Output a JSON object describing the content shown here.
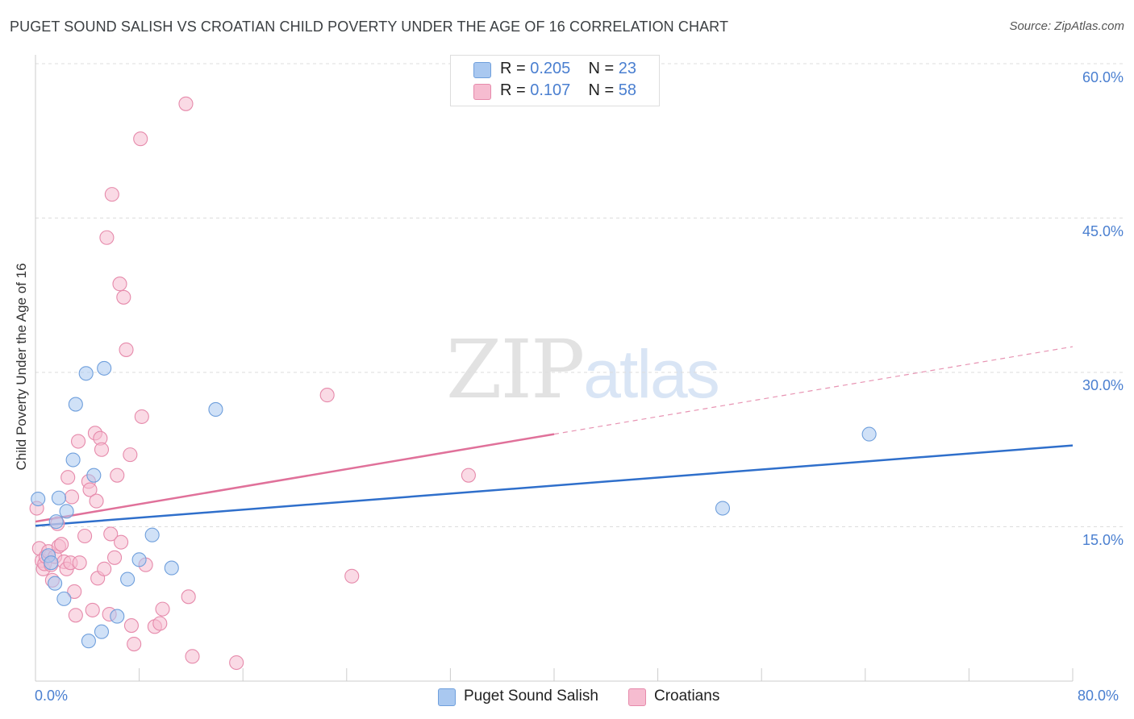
{
  "header": {
    "title": "PUGET SOUND SALISH VS CROATIAN CHILD POVERTY UNDER THE AGE OF 16 CORRELATION CHART",
    "source": "Source: ZipAtlas.com"
  },
  "watermark": {
    "zip": "ZIP",
    "atlas": "atlas"
  },
  "legend": {
    "rows": [
      {
        "r_label": "R =",
        "r_value": "0.205",
        "n_label": "N =",
        "n_value": "23"
      },
      {
        "r_label": "R =",
        "r_value": "0.107",
        "n_label": "N =",
        "n_value": "58"
      }
    ]
  },
  "colors": {
    "salish_fill": "#a9c8f0",
    "salish_stroke": "#6f9fdc",
    "salish_line": "#2f6fcb",
    "croatian_fill": "#f6bcd0",
    "croatian_stroke": "#e68aab",
    "croatian_line": "#e0719a",
    "axis_text": "#4a7fd0",
    "grid": "#dddddd"
  },
  "chart_data": {
    "type": "scatter",
    "title": "PUGET SOUND SALISH VS CROATIAN CHILD POVERTY UNDER THE AGE OF 16 CORRELATION CHART",
    "xlabel": "",
    "ylabel": "Child Poverty Under the Age of 16",
    "xlim": [
      0,
      80
    ],
    "ylim": [
      0,
      60
    ],
    "x_tick_labels": [
      "0.0%",
      "80.0%"
    ],
    "y_tick_values": [
      15,
      30,
      45,
      60
    ],
    "y_tick_labels": [
      "15.0%",
      "30.0%",
      "45.0%",
      "60.0%"
    ],
    "grid": true,
    "series": [
      {
        "name": "Puget Sound Salish",
        "r": 0.205,
        "n": 23,
        "points": [
          [
            0.2,
            17.7
          ],
          [
            1.0,
            12.2
          ],
          [
            1.2,
            11.5
          ],
          [
            1.5,
            9.5
          ],
          [
            1.6,
            15.5
          ],
          [
            1.8,
            17.8
          ],
          [
            2.2,
            8.0
          ],
          [
            2.4,
            16.5
          ],
          [
            2.9,
            21.5
          ],
          [
            3.1,
            26.9
          ],
          [
            3.9,
            29.9
          ],
          [
            4.1,
            3.9
          ],
          [
            4.5,
            20.0
          ],
          [
            5.1,
            4.8
          ],
          [
            5.3,
            30.4
          ],
          [
            6.3,
            6.3
          ],
          [
            7.1,
            9.9
          ],
          [
            8.0,
            11.8
          ],
          [
            9.0,
            14.2
          ],
          [
            10.5,
            11.0
          ],
          [
            13.9,
            26.4
          ],
          [
            53.0,
            16.8
          ],
          [
            64.3,
            24.0
          ]
        ],
        "trend": {
          "x": [
            0,
            80
          ],
          "y": [
            15.1,
            22.9
          ],
          "style": "solid"
        }
      },
      {
        "name": "Croatians",
        "r": 0.107,
        "n": 58,
        "points": [
          [
            0.1,
            16.8
          ],
          [
            0.3,
            12.9
          ],
          [
            0.5,
            11.7
          ],
          [
            0.6,
            10.9
          ],
          [
            0.7,
            11.4
          ],
          [
            0.8,
            12.1
          ],
          [
            1.0,
            12.6
          ],
          [
            1.2,
            11.3
          ],
          [
            1.3,
            9.8
          ],
          [
            1.5,
            12.1
          ],
          [
            1.7,
            15.3
          ],
          [
            1.8,
            13.1
          ],
          [
            2.0,
            13.3
          ],
          [
            2.2,
            11.6
          ],
          [
            2.4,
            10.9
          ],
          [
            2.5,
            19.8
          ],
          [
            2.7,
            11.5
          ],
          [
            2.8,
            17.9
          ],
          [
            3.0,
            8.7
          ],
          [
            3.1,
            6.4
          ],
          [
            3.3,
            23.3
          ],
          [
            3.4,
            11.5
          ],
          [
            3.8,
            14.1
          ],
          [
            4.1,
            19.4
          ],
          [
            4.2,
            18.6
          ],
          [
            4.4,
            6.9
          ],
          [
            4.6,
            24.1
          ],
          [
            4.7,
            17.5
          ],
          [
            4.8,
            10.0
          ],
          [
            5.0,
            23.6
          ],
          [
            5.1,
            22.5
          ],
          [
            5.3,
            10.9
          ],
          [
            5.5,
            43.1
          ],
          [
            5.7,
            6.5
          ],
          [
            5.8,
            14.3
          ],
          [
            5.9,
            47.3
          ],
          [
            6.1,
            12.0
          ],
          [
            6.3,
            20.0
          ],
          [
            6.5,
            38.6
          ],
          [
            6.6,
            13.5
          ],
          [
            6.8,
            37.3
          ],
          [
            7.0,
            32.2
          ],
          [
            7.3,
            22.0
          ],
          [
            7.4,
            5.4
          ],
          [
            7.6,
            3.6
          ],
          [
            8.1,
            52.7
          ],
          [
            8.2,
            25.7
          ],
          [
            8.5,
            11.3
          ],
          [
            9.2,
            5.3
          ],
          [
            9.6,
            5.6
          ],
          [
            9.8,
            7.0
          ],
          [
            11.6,
            56.1
          ],
          [
            11.8,
            8.2
          ],
          [
            12.1,
            2.4
          ],
          [
            15.5,
            1.8
          ],
          [
            22.5,
            27.8
          ],
          [
            24.4,
            10.2
          ],
          [
            33.4,
            20.0
          ]
        ],
        "trend": {
          "x": [
            0,
            40
          ],
          "y": [
            15.5,
            24.0
          ],
          "style": "solid",
          "extension": {
            "x": [
              40,
              80
            ],
            "y": [
              24.0,
              32.5
            ],
            "style": "dashed"
          }
        }
      }
    ]
  },
  "bottom_legend": {
    "items": [
      {
        "label": "Puget Sound Salish"
      },
      {
        "label": "Croatians"
      }
    ]
  }
}
